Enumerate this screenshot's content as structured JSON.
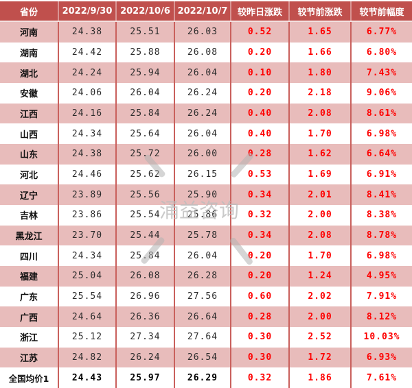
{
  "chart_data": {
    "type": "table",
    "title": "",
    "columns": [
      "省份",
      "2022/9/30",
      "2022/10/6",
      "2022/10/7",
      "较昨日涨跌",
      "较节前涨跌",
      "较节前幅度"
    ],
    "rows": [
      [
        "河南",
        "24.38",
        "25.51",
        "26.03",
        "0.52",
        "1.65",
        "6.77%"
      ],
      [
        "湖南",
        "24.42",
        "25.88",
        "26.08",
        "0.20",
        "1.66",
        "6.80%"
      ],
      [
        "湖北",
        "24.24",
        "25.94",
        "26.04",
        "0.10",
        "1.80",
        "7.43%"
      ],
      [
        "安徽",
        "24.06",
        "26.04",
        "26.24",
        "0.20",
        "2.18",
        "9.06%"
      ],
      [
        "江西",
        "24.16",
        "25.84",
        "26.24",
        "0.40",
        "2.08",
        "8.61%"
      ],
      [
        "山西",
        "24.34",
        "25.64",
        "26.04",
        "0.40",
        "1.70",
        "6.98%"
      ],
      [
        "山东",
        "24.38",
        "25.72",
        "26.00",
        "0.28",
        "1.62",
        "6.64%"
      ],
      [
        "河北",
        "24.46",
        "25.62",
        "26.15",
        "0.53",
        "1.69",
        "6.91%"
      ],
      [
        "辽宁",
        "23.89",
        "25.56",
        "25.90",
        "0.34",
        "2.01",
        "8.41%"
      ],
      [
        "吉林",
        "23.86",
        "25.54",
        "25.86",
        "0.32",
        "2.00",
        "8.38%"
      ],
      [
        "黑龙江",
        "23.70",
        "25.44",
        "25.78",
        "0.34",
        "2.08",
        "8.78%"
      ],
      [
        "四川",
        "24.34",
        "25.84",
        "26.04",
        "0.20",
        "1.70",
        "6.98%"
      ],
      [
        "福建",
        "25.04",
        "26.08",
        "26.28",
        "0.20",
        "1.24",
        "4.95%"
      ],
      [
        "广东",
        "25.54",
        "26.96",
        "27.56",
        "0.60",
        "2.02",
        "7.91%"
      ],
      [
        "广西",
        "24.64",
        "26.36",
        "26.64",
        "0.28",
        "2.00",
        "8.12%"
      ],
      [
        "浙江",
        "25.12",
        "27.34",
        "27.64",
        "0.30",
        "2.52",
        "10.03%"
      ],
      [
        "江苏",
        "24.82",
        "26.24",
        "26.54",
        "0.30",
        "1.72",
        "6.93%"
      ],
      [
        "全国均价1",
        "24.43",
        "25.97",
        "26.29",
        "0.32",
        "1.86",
        "7.61%"
      ]
    ],
    "stripe_pattern": "odd rows pink, even rows white, last row is national average (bold)",
    "legend_position": "none",
    "grid": "vertical red separators only"
  },
  "watermark": {
    "text": "涌益咨询"
  },
  "colors": {
    "header_bg": "#C0504D",
    "header_text": "#FFFFFF",
    "row_stripe_pink": "#E8BCBB",
    "grid_line_red": "#C9605C",
    "value_red": "#FE0000",
    "text_dark": "#2B2B2B",
    "watermark_gray": "#BDBDBD"
  }
}
